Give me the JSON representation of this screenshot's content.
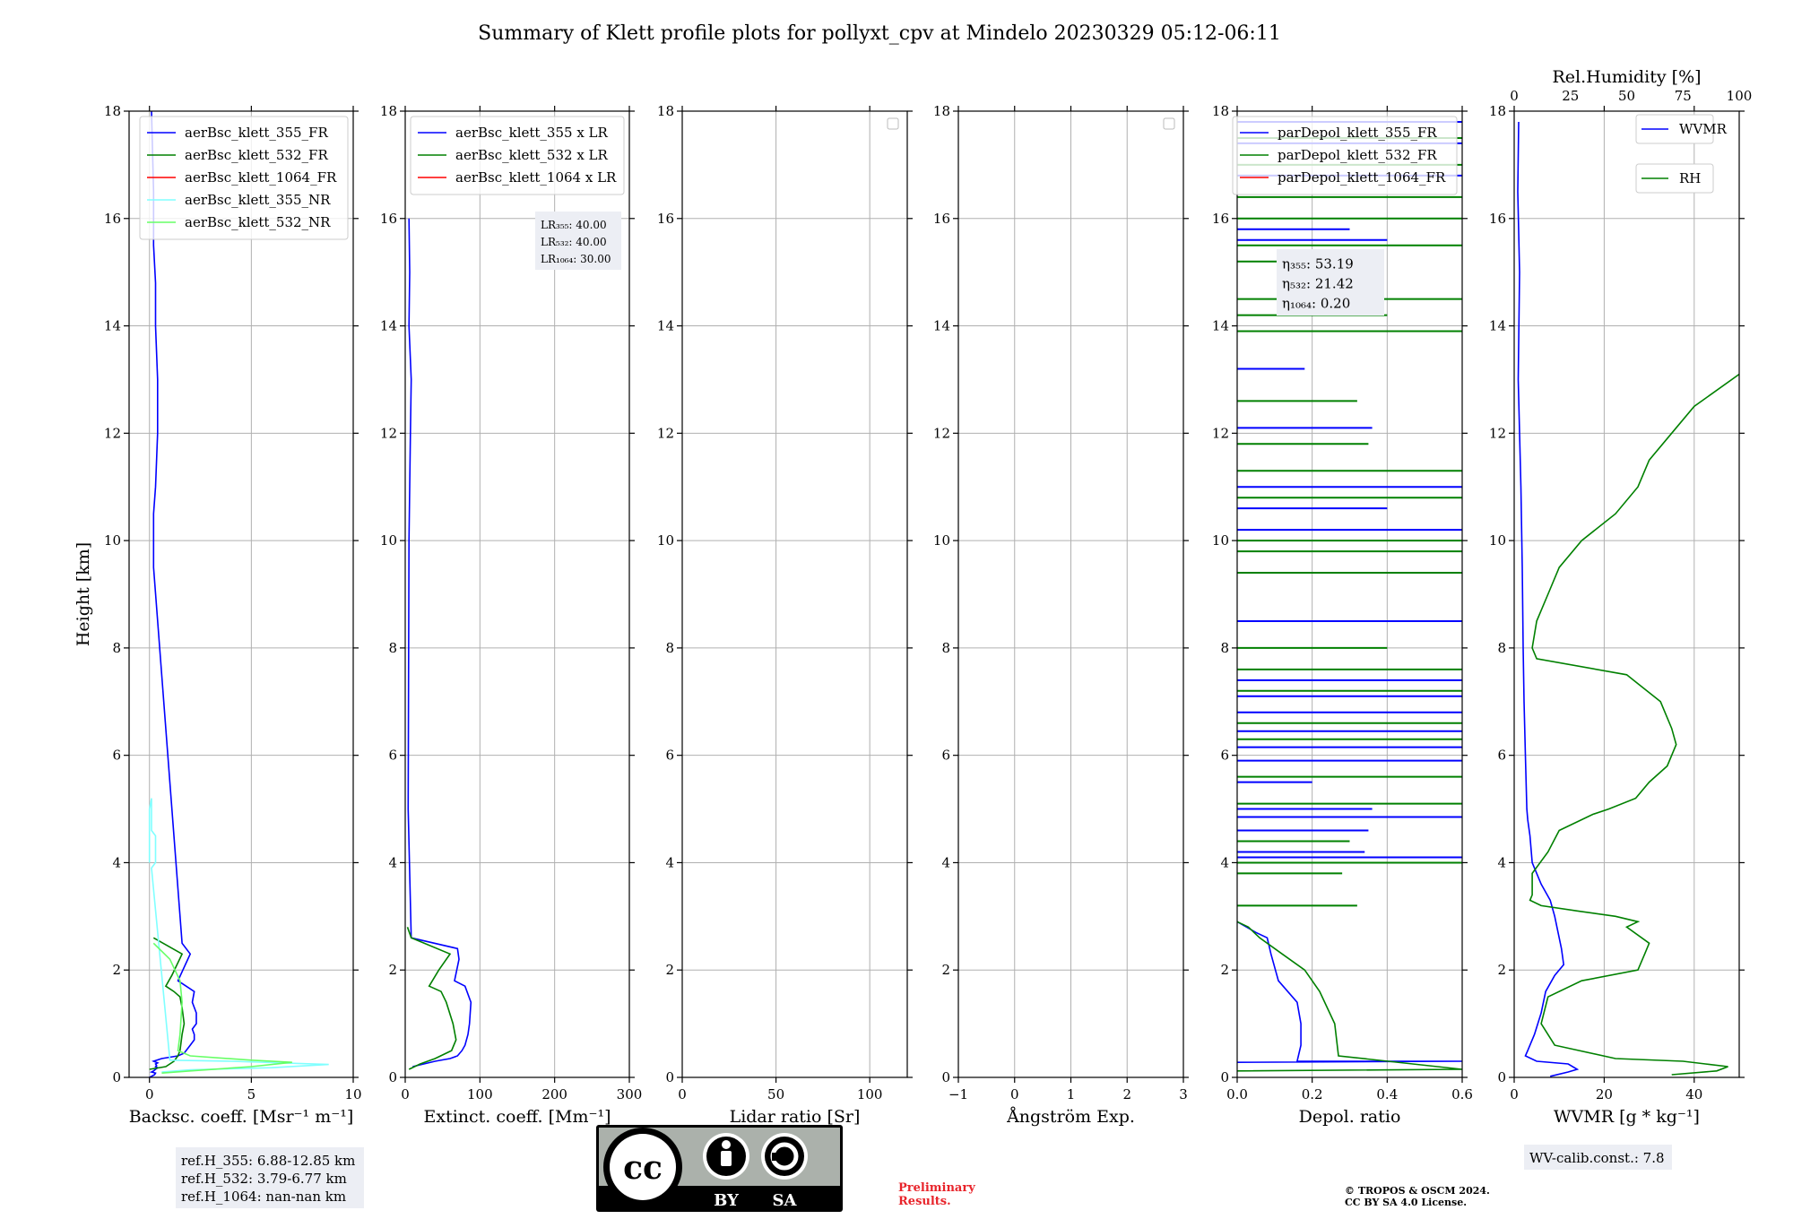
{
  "title": "Summary of Klett profile plots for pollyxt_cpv at Mindelo 20230329 05:12-06:11",
  "colors": {
    "blue": "#0000ff",
    "green": "#008000",
    "red": "#ff0000",
    "cyan": "#80ffff",
    "lightgreen": "#66ff66",
    "grid": "#b0b0b0",
    "annot_bg": "#eceef4"
  },
  "chart_data": [
    {
      "type": "line",
      "id": "backscatter",
      "xlabel": "Backsc. coeff. [Msr⁻¹ m⁻¹]",
      "ylabel": "Height [km]",
      "xlim": [
        -1,
        10
      ],
      "ylim": [
        0,
        18
      ],
      "xticks": [
        "0",
        "5",
        "10"
      ],
      "yticks": [
        "0",
        "2",
        "4",
        "6",
        "8",
        "10",
        "12",
        "14",
        "16",
        "18"
      ],
      "grid": true,
      "legend_position": "top-right",
      "series": [
        {
          "name": "aerBsc_klett_355_FR",
          "color": "blue",
          "x": [
            0.1,
            0.2,
            0.2,
            0.3,
            0.3,
            0.4,
            0.4,
            0.3,
            0.2,
            0.2,
            1.6,
            2.0,
            1.4,
            1.8,
            2.2,
            2.1,
            2.3,
            2.3,
            2.1,
            2.2,
            2.2,
            2.0,
            1.8,
            1.7,
            1.4,
            0.6,
            0.2,
            0.4,
            0.3,
            0.35,
            0.3,
            0.4,
            0.3,
            0.2,
            0.1,
            0.3,
            0.25,
            0.1,
            0.0
          ],
          "y": [
            18,
            16.5,
            15.5,
            14.8,
            14.0,
            13.0,
            12.0,
            11.0,
            10.5,
            9.5,
            2.5,
            2.3,
            1.8,
            1.7,
            1.6,
            1.4,
            1.2,
            1.0,
            0.9,
            0.8,
            0.7,
            0.6,
            0.5,
            0.45,
            0.4,
            0.35,
            0.3,
            0.27,
            0.25,
            0.22,
            0.2,
            0.18,
            0.15,
            0.12,
            0.1,
            0.08,
            0.05,
            0.02,
            0.0
          ]
        },
        {
          "name": "aerBsc_klett_532_FR",
          "color": "green",
          "x": [
            0.2,
            1.6,
            1.1,
            0.8,
            1.2,
            1.5,
            1.6,
            1.7,
            1.6,
            1.5,
            1.4,
            1.2,
            0.8,
            0.0
          ],
          "y": [
            2.6,
            2.3,
            1.9,
            1.7,
            1.6,
            1.5,
            1.3,
            1.0,
            0.8,
            0.5,
            0.4,
            0.3,
            0.2,
            0.15
          ]
        },
        {
          "name": "aerBsc_klett_1064_FR",
          "color": "red",
          "x": [],
          "y": []
        },
        {
          "name": "aerBsc_klett_355_NR",
          "color": "cyan",
          "x": [
            0.0,
            0.0,
            0.1,
            0.1,
            0.3,
            0.3,
            0.1,
            1.0,
            4.0,
            8.8,
            6.0,
            2.0,
            0.6
          ],
          "y": [
            4.0,
            5.0,
            5.2,
            4.6,
            4.5,
            4.0,
            3.9,
            0.32,
            0.3,
            0.24,
            0.18,
            0.14,
            0.1
          ]
        },
        {
          "name": "aerBsc_klett_532_NR",
          "color": "lightgreen",
          "x": [
            0.2,
            1.0,
            1.5,
            1.6,
            1.5,
            1.4,
            2.0,
            5.0,
            7.0,
            5.0,
            2.0,
            0.6
          ],
          "y": [
            2.5,
            2.2,
            1.8,
            1.4,
            0.8,
            0.5,
            0.4,
            0.32,
            0.28,
            0.2,
            0.12,
            0.08
          ]
        }
      ],
      "annotation": [
        "ref.H_355: 6.88-12.85 km",
        "ref.H_532: 3.79-6.77 km",
        "ref.H_1064: nan-nan km"
      ]
    },
    {
      "type": "line",
      "id": "extinction",
      "xlabel": "Extinct. coeff. [Mm⁻¹]",
      "xlim": [
        0,
        300
      ],
      "ylim": [
        0,
        18
      ],
      "xticks": [
        "0",
        "100",
        "200",
        "300"
      ],
      "yticks": [
        "0",
        "2",
        "4",
        "6",
        "8",
        "10",
        "12",
        "14",
        "16",
        "18"
      ],
      "grid": true,
      "legend_position": "top-right",
      "series": [
        {
          "name": "aerBsc_klett_355 x LR",
          "color": "blue",
          "x": [
            5,
            6,
            5,
            8,
            7,
            6,
            5,
            4,
            8,
            70,
            72,
            66,
            80,
            88,
            86,
            84,
            80,
            76,
            70,
            60,
            40,
            10
          ],
          "y": [
            16,
            15.0,
            14.0,
            13.0,
            12.0,
            11.0,
            10.0,
            5.0,
            2.6,
            2.4,
            2.2,
            1.8,
            1.7,
            1.4,
            1.0,
            0.8,
            0.6,
            0.5,
            0.4,
            0.35,
            0.3,
            0.2
          ]
        },
        {
          "name": "aerBsc_klett_532 x LR",
          "color": "green",
          "x": [
            3,
            8,
            60,
            45,
            32,
            48,
            55,
            64,
            68,
            62,
            40,
            20,
            5
          ],
          "y": [
            2.8,
            2.6,
            2.3,
            2.0,
            1.7,
            1.6,
            1.4,
            1.0,
            0.7,
            0.5,
            0.35,
            0.25,
            0.15
          ]
        },
        {
          "name": "aerBsc_klett_1064 x LR",
          "color": "red",
          "x": [],
          "y": []
        }
      ],
      "annotation": [
        "LR₃₅₅: 40.00",
        "LR₅₃₂: 40.00",
        "LR₁₀₆₄: 30.00"
      ]
    },
    {
      "type": "line",
      "id": "lidar_ratio",
      "xlabel": "Lidar ratio [Sr]",
      "xlim": [
        0,
        120
      ],
      "ylim": [
        0,
        18
      ],
      "xticks": [
        "0",
        "50",
        "100"
      ],
      "yticks": [
        "0",
        "2",
        "4",
        "6",
        "8",
        "10",
        "12",
        "14",
        "16",
        "18"
      ],
      "grid": true,
      "legend_position": "top-right",
      "series": []
    },
    {
      "type": "line",
      "id": "angstrom",
      "xlabel": "Ångström Exp.",
      "xlim": [
        -1,
        3
      ],
      "ylim": [
        0,
        18
      ],
      "xticks": [
        "−1",
        "0",
        "1",
        "2",
        "3"
      ],
      "yticks": [
        "0",
        "2",
        "4",
        "6",
        "8",
        "10",
        "12",
        "14",
        "16",
        "18"
      ],
      "grid": true,
      "legend_position": "top-right",
      "series": []
    },
    {
      "type": "line",
      "id": "depol",
      "xlabel": "Depol. ratio",
      "xlim": [
        0,
        0.6
      ],
      "ylim": [
        0,
        18
      ],
      "xticks": [
        "0.0",
        "0.2",
        "0.4",
        "0.6"
      ],
      "yticks": [
        "0",
        "2",
        "4",
        "6",
        "8",
        "10",
        "12",
        "14",
        "16",
        "18"
      ],
      "grid": true,
      "legend_position": "top-right",
      "series": [
        {
          "name": "parDepol_klett_355_FR",
          "color": "blue",
          "x": [
            0.0,
            0.05,
            0.08,
            0.09,
            0.11,
            0.16,
            0.17,
            0.17,
            0.16,
            0.6,
            0.0
          ],
          "y": [
            2.9,
            2.7,
            2.6,
            2.3,
            1.8,
            1.4,
            1.0,
            0.6,
            0.3,
            0.3,
            0.28
          ],
          "spikes": [
            [
              4.1,
              0.6
            ],
            [
              4.2,
              0.34
            ],
            [
              4.6,
              0.35
            ],
            [
              4.85,
              0.6
            ],
            [
              5.0,
              0.36
            ],
            [
              5.5,
              0.2
            ],
            [
              5.9,
              0.6
            ],
            [
              6.15,
              0.6
            ],
            [
              6.45,
              0.6
            ],
            [
              6.8,
              0.6
            ],
            [
              7.1,
              0.6
            ],
            [
              7.4,
              0.6
            ],
            [
              8.5,
              0.6
            ],
            [
              10.2,
              0.6
            ],
            [
              10.6,
              0.4
            ],
            [
              11.0,
              0.6
            ],
            [
              12.1,
              0.36
            ],
            [
              13.2,
              0.18
            ],
            [
              15.6,
              0.4
            ],
            [
              15.8,
              0.3
            ],
            [
              16.8,
              0.6
            ],
            [
              17.4,
              0.6
            ],
            [
              17.8,
              0.6
            ]
          ]
        },
        {
          "name": "parDepol_klett_532_FR",
          "color": "green",
          "x": [
            0.0,
            0.03,
            0.06,
            0.12,
            0.18,
            0.22,
            0.26,
            0.27,
            0.6,
            0.0
          ],
          "y": [
            2.9,
            2.8,
            2.6,
            2.3,
            2.0,
            1.6,
            1.0,
            0.4,
            0.15,
            0.12
          ],
          "spikes": [
            [
              3.2,
              0.32
            ],
            [
              3.8,
              0.28
            ],
            [
              4.0,
              0.6
            ],
            [
              4.4,
              0.3
            ],
            [
              5.1,
              0.6
            ],
            [
              5.6,
              0.6
            ],
            [
              6.3,
              0.6
            ],
            [
              6.6,
              0.6
            ],
            [
              7.2,
              0.6
            ],
            [
              7.6,
              0.6
            ],
            [
              8.0,
              0.4
            ],
            [
              9.4,
              0.6
            ],
            [
              9.8,
              0.6
            ],
            [
              10.0,
              0.6
            ],
            [
              10.8,
              0.6
            ],
            [
              11.3,
              0.6
            ],
            [
              11.8,
              0.35
            ],
            [
              12.6,
              0.32
            ],
            [
              13.9,
              0.6
            ],
            [
              14.2,
              0.4
            ],
            [
              14.5,
              0.6
            ],
            [
              15.2,
              0.3
            ],
            [
              15.5,
              0.6
            ],
            [
              16.0,
              0.6
            ],
            [
              16.4,
              0.6
            ],
            [
              17.0,
              0.6
            ],
            [
              17.5,
              0.6
            ]
          ]
        },
        {
          "name": "parDepol_klett_1064_FR",
          "color": "red",
          "x": [],
          "y": []
        }
      ],
      "annotation": [
        "η₃₅₅: 53.19",
        "η₅₃₂: 21.42",
        "η₁₀₆₄: 0.20"
      ]
    },
    {
      "type": "line",
      "id": "wvmr",
      "xlabel": "WVMR [g * kg⁻¹]",
      "x2label": "Rel.Humidity [%]",
      "xlim": [
        0,
        50
      ],
      "x2lim": [
        0,
        100
      ],
      "ylim": [
        0,
        18
      ],
      "xticks": [
        "0",
        "20",
        "40"
      ],
      "x2ticks": [
        "0",
        "25",
        "50",
        "75",
        "100"
      ],
      "yticks": [
        "0",
        "2",
        "4",
        "6",
        "8",
        "10",
        "12",
        "14",
        "16",
        "18"
      ],
      "grid": true,
      "legend_position": "top-right",
      "series": [
        {
          "name": "WVMR",
          "color": "blue",
          "axis": "bottom",
          "x": [
            1,
            0.8,
            1.2,
            0.9,
            1.5,
            1.8,
            2.0,
            2.2,
            2.5,
            2.8,
            3.0,
            3.5,
            4.0,
            6.0,
            8.0,
            9.0,
            10.0,
            10.5,
            11.0,
            9.0,
            7.0,
            6.0,
            4.5,
            3.0,
            2.5,
            5.0,
            12.0,
            14.0,
            12.0,
            8.0
          ],
          "y": [
            17.8,
            16.5,
            15.0,
            13.0,
            11.0,
            9.5,
            8.0,
            7.0,
            6.0,
            5.0,
            4.8,
            4.5,
            4.0,
            3.6,
            3.3,
            3.0,
            2.6,
            2.4,
            2.1,
            1.9,
            1.6,
            1.2,
            0.8,
            0.5,
            0.4,
            0.3,
            0.25,
            0.15,
            0.1,
            0.02
          ]
        },
        {
          "name": "RH",
          "color": "green",
          "axis": "top",
          "x": [
            100,
            80,
            70,
            60,
            55,
            45,
            30,
            20,
            15,
            10,
            8,
            10,
            50,
            65,
            70,
            72,
            68,
            60,
            54,
            42,
            35,
            20,
            15,
            8,
            8,
            7,
            12,
            28,
            45,
            55,
            50,
            60,
            58,
            55,
            30,
            15,
            12,
            18,
            45,
            75,
            85,
            95,
            90,
            70
          ],
          "y": [
            13.1,
            12.5,
            12.0,
            11.5,
            11.0,
            10.5,
            10.0,
            9.5,
            9.0,
            8.5,
            8.0,
            7.8,
            7.5,
            7.0,
            6.5,
            6.2,
            5.8,
            5.5,
            5.2,
            5.0,
            4.9,
            4.6,
            4.2,
            3.8,
            3.4,
            3.3,
            3.2,
            3.1,
            3.0,
            2.9,
            2.8,
            2.5,
            2.3,
            2.0,
            1.8,
            1.5,
            1.0,
            0.6,
            0.35,
            0.3,
            0.25,
            0.2,
            0.12,
            0.05
          ]
        }
      ],
      "annotation": [
        "WV-calib.const.: 7.8"
      ]
    }
  ],
  "footer": {
    "preliminary": [
      "Preliminary",
      "Results."
    ],
    "copyright": [
      "© TROPOS & OSCM 2024.",
      "CC BY SA 4.0 License."
    ],
    "license_badge": [
      "BY",
      "SA"
    ]
  }
}
